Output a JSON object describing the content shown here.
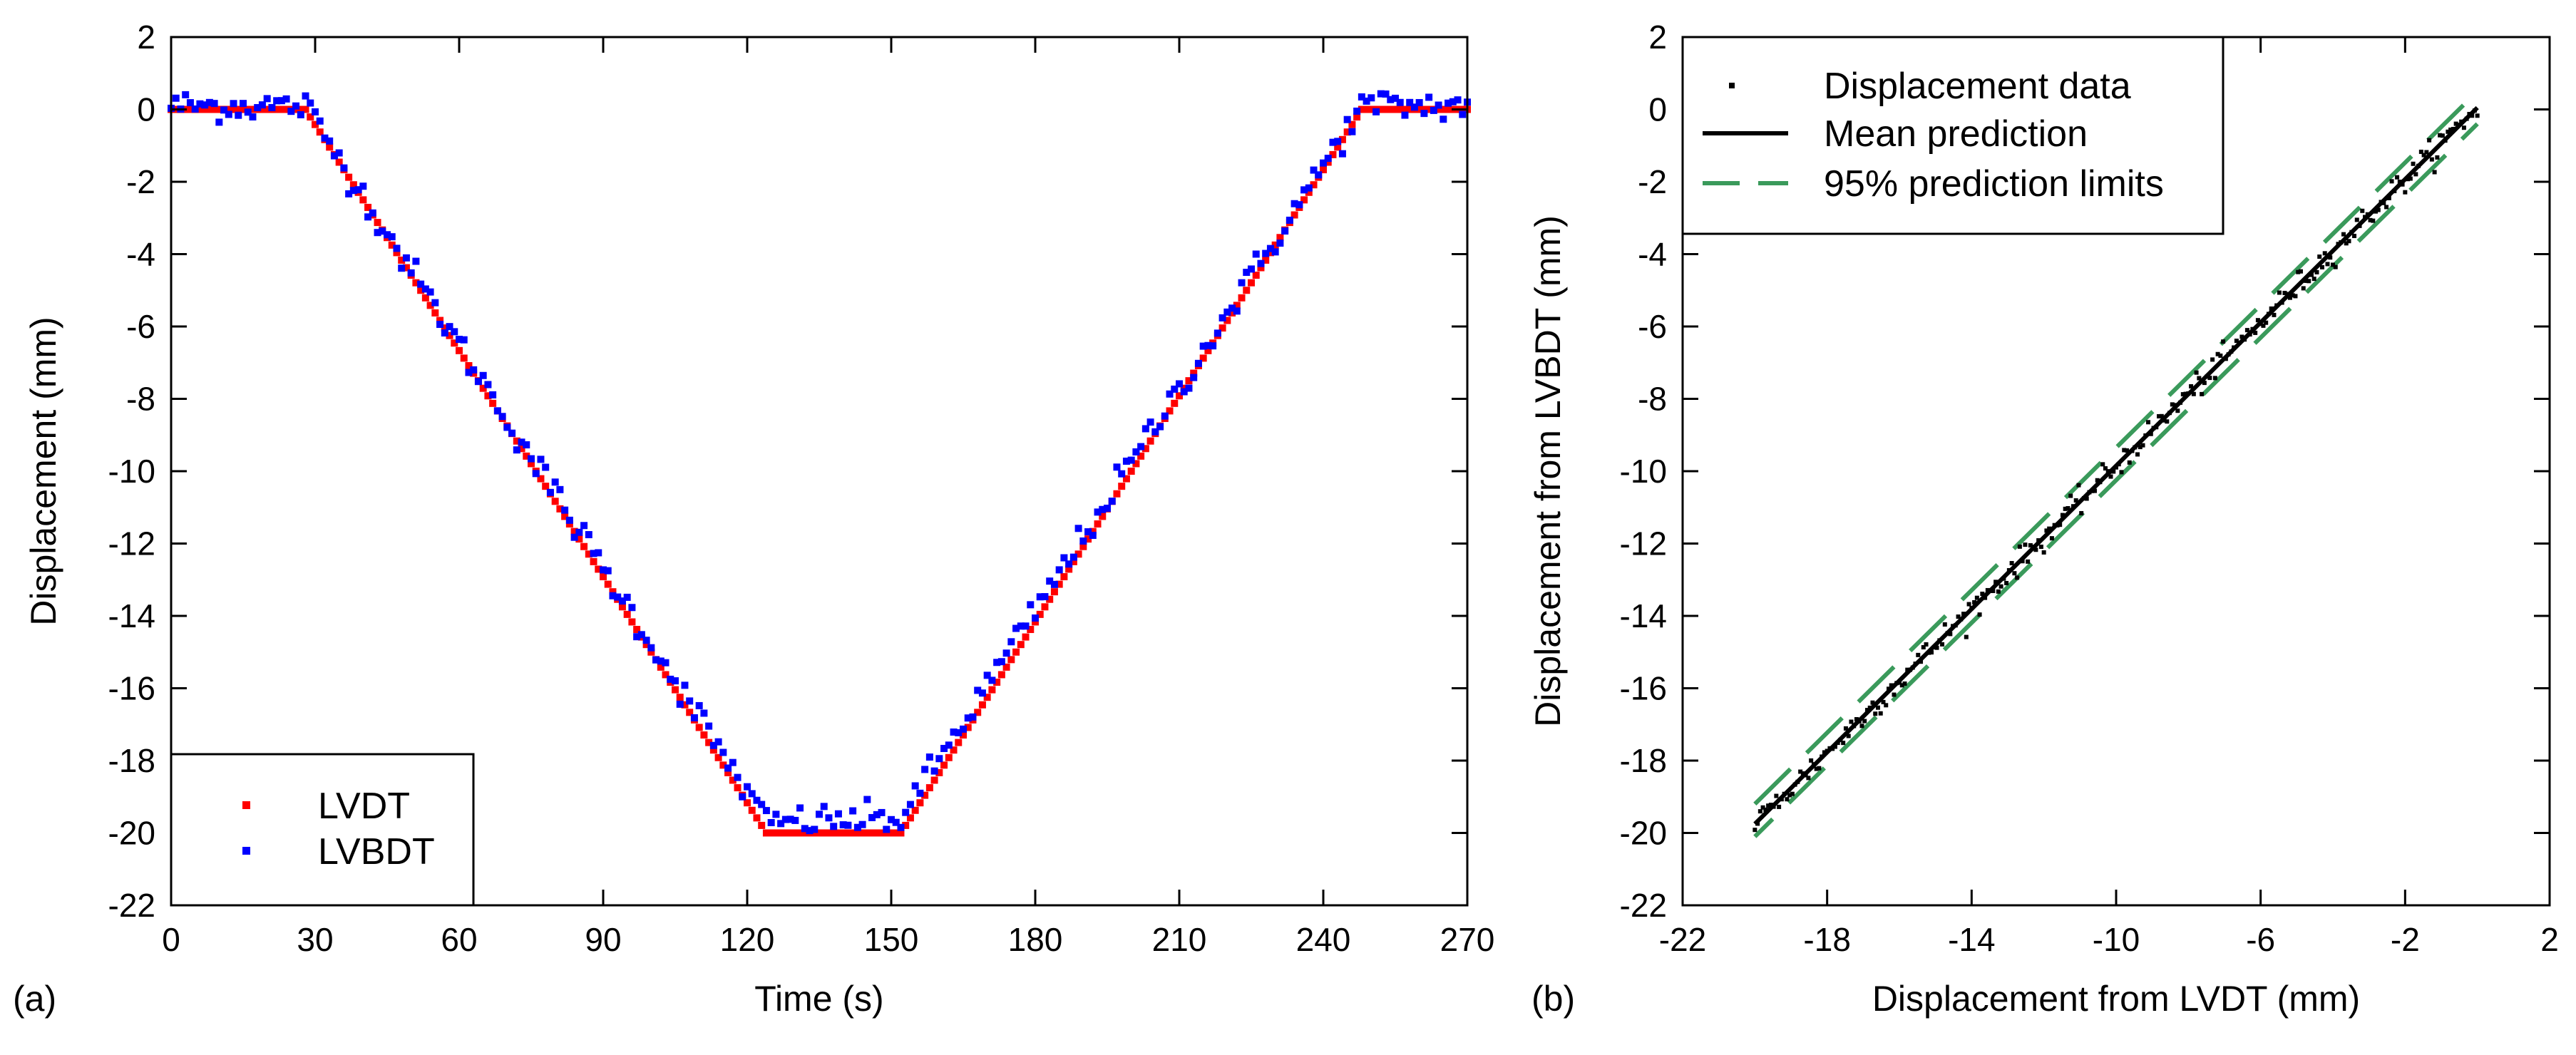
{
  "colors": {
    "lvdt": "#ff0000",
    "lvbdt": "#0000ff",
    "data_points": "#000000",
    "mean_line": "#000000",
    "limits": "#3a9a5b",
    "axes": "#000000"
  },
  "chart_data": [
    {
      "type": "scatter",
      "panel_label": "(a)",
      "title": "",
      "xlabel": "Time (s)",
      "ylabel": "Displacement (mm)",
      "xlim": [
        0,
        270
      ],
      "ylim": [
        -22,
        2
      ],
      "xticks": [
        0,
        30,
        60,
        90,
        120,
        150,
        180,
        210,
        240,
        270
      ],
      "yticks": [
        2,
        0,
        -2,
        -4,
        -6,
        -8,
        -10,
        -12,
        -14,
        -16,
        -18,
        -20,
        -22
      ],
      "legend_position": "bottom-left",
      "x_step": 1,
      "series": [
        {
          "name": "LVDT",
          "color": "#ff0000",
          "profile": {
            "x": [
              0,
              28,
              124,
              152,
              248,
              270
            ],
            "y": [
              0,
              0,
              -20,
              -20,
              0,
              0
            ]
          }
        },
        {
          "name": "LVBDT",
          "color": "#0000ff",
          "profile": {
            "x": [
              0,
              28,
              124,
              152,
              248,
              270
            ],
            "y": [
              0.1,
              0.1,
              -19.7,
              -19.6,
              0.1,
              0.1
            ]
          },
          "noise_std": 0.22
        }
      ]
    },
    {
      "type": "scatter",
      "panel_label": "(b)",
      "title": "",
      "xlabel": "Displacement from LVDT (mm)",
      "ylabel": "Displacement from LVBDT (mm)",
      "xlim": [
        -22,
        2
      ],
      "ylim": [
        -22,
        2
      ],
      "xticks": [
        -22,
        -18,
        -14,
        -10,
        -6,
        -2,
        2
      ],
      "yticks": [
        2,
        0,
        -2,
        -4,
        -6,
        -8,
        -10,
        -12,
        -14,
        -16,
        -18,
        -20,
        -22
      ],
      "legend_position": "top-left",
      "series": [
        {
          "name": "Displacement data",
          "kind": "points",
          "x_range": [
            -20,
            0
          ],
          "slope": 0.99,
          "intercept": 0.05,
          "noise_std": 0.18
        },
        {
          "name": "Mean prediction",
          "kind": "line",
          "x": [
            -20,
            0
          ],
          "y": [
            -19.75,
            0.05
          ]
        },
        {
          "name": "95% prediction limits",
          "kind": "dashed",
          "upper": {
            "x": [
              -20,
              0
            ],
            "y": [
              -19.2,
              0.5
            ]
          },
          "lower": {
            "x": [
              -20,
              0
            ],
            "y": [
              -20.1,
              -0.4
            ]
          }
        }
      ]
    }
  ]
}
